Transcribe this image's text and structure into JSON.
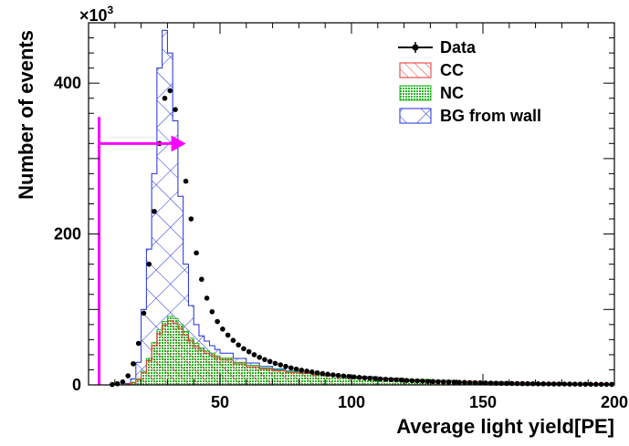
{
  "chart_data": {
    "type": "histogram",
    "xlabel": "Average light yield[PE]",
    "ylabel": "Number of events",
    "y_multiplier": "×10",
    "y_multiplier_exp": "3",
    "xlim": [
      0,
      200
    ],
    "ylim": [
      0,
      480
    ],
    "x_ticks": [
      50,
      100,
      150,
      200
    ],
    "y_ticks": [
      0,
      200,
      400
    ],
    "y_tick_labels": [
      "0",
      "200",
      "400"
    ],
    "legend_placement": "top-right",
    "grid": false,
    "series": [
      {
        "name": "Data",
        "style": "points",
        "color": "#000000",
        "x": [
          5,
          7,
          9,
          11,
          13,
          15,
          17,
          19,
          21,
          23,
          25,
          27,
          29,
          31,
          33,
          35,
          37,
          39,
          41,
          43,
          45,
          47,
          49,
          51,
          53,
          55,
          57,
          59,
          61,
          63,
          65,
          67,
          69,
          71,
          73,
          75,
          77,
          79,
          81,
          83,
          85,
          87,
          89,
          91,
          93,
          95,
          97,
          99,
          101,
          103,
          105,
          107,
          109,
          111,
          113,
          115,
          117,
          119,
          121,
          123,
          125,
          127,
          129,
          131,
          133,
          135,
          137,
          139,
          141,
          143,
          145,
          147,
          149,
          151,
          153,
          155,
          157,
          159,
          161,
          163,
          165,
          167,
          169,
          171,
          173,
          175,
          177,
          179,
          181,
          183,
          185,
          187,
          189,
          191,
          193,
          195,
          197,
          199
        ],
        "y": [
          0,
          0,
          0.5,
          1.5,
          4,
          12,
          28,
          55,
          95,
          160,
          230,
          320,
          380,
          390,
          365,
          320,
          270,
          220,
          175,
          140,
          115,
          97,
          84,
          74,
          66,
          59,
          53,
          48,
          44,
          40,
          36.5,
          33.5,
          31,
          28.5,
          26.5,
          24.5,
          22.5,
          21,
          19.5,
          18.3,
          17.1,
          16,
          15,
          14.1,
          13.3,
          12.5,
          11.8,
          11.1,
          10.5,
          9.9,
          9.3,
          8.8,
          8.3,
          7.8,
          7.4,
          7,
          6.6,
          6.2,
          5.9,
          5.6,
          5.3,
          5,
          4.7,
          4.4,
          4.2,
          4,
          3.8,
          3.6,
          3.4,
          3.2,
          3,
          2.8,
          2.65,
          2.5,
          2.35,
          2.2,
          2.1,
          2,
          1.9,
          1.8,
          1.7,
          1.6,
          1.5,
          1.45,
          1.4,
          1.3,
          1.25,
          1.2,
          1.15,
          1.1,
          1,
          0.95,
          0.9,
          0.85,
          0.8,
          0.75,
          0.7,
          0.65
        ]
      },
      {
        "name": "CC",
        "style": "hatched-step",
        "color": "#e8322e",
        "x": [
          10,
          12,
          14,
          16,
          18,
          20,
          22,
          24,
          26,
          28,
          30,
          32,
          34,
          36,
          38,
          40,
          42,
          44,
          46,
          48,
          50,
          55,
          60,
          65,
          70,
          75,
          80,
          85,
          90,
          95,
          100,
          110,
          120,
          130,
          140,
          150,
          160,
          170,
          180,
          190,
          200
        ],
        "y": [
          0,
          0,
          1,
          3,
          7,
          16,
          32,
          52,
          68,
          79,
          85,
          82,
          75,
          66,
          58,
          51,
          46,
          42,
          39,
          36,
          33,
          28,
          24,
          21,
          18.5,
          16.5,
          15,
          13.5,
          12.2,
          11,
          10,
          8.2,
          6.7,
          5.5,
          4.5,
          3.7,
          3,
          2.4,
          2,
          1.6,
          1.3
        ]
      },
      {
        "name": "NC",
        "style": "hatched-step",
        "color": "#27b427",
        "x": [
          10,
          12,
          14,
          16,
          18,
          20,
          22,
          24,
          26,
          28,
          30,
          32,
          34,
          36,
          38,
          40,
          42,
          44,
          46,
          48,
          50,
          55,
          60,
          65,
          70,
          75,
          80,
          85,
          90,
          95,
          100,
          110,
          120,
          130,
          140,
          150,
          160,
          170,
          180,
          190,
          200
        ],
        "y": [
          0,
          0,
          1,
          3.5,
          8,
          18,
          35,
          56,
          73,
          84,
          91,
          88,
          80,
          71,
          62,
          55,
          49,
          45,
          42,
          38.5,
          35.5,
          30,
          26,
          22.5,
          20,
          17.8,
          16,
          14.5,
          13,
          11.8,
          10.7,
          8.8,
          7.2,
          5.9,
          4.8,
          4,
          3.2,
          2.6,
          2.1,
          1.7,
          1.4
        ]
      },
      {
        "name": "BG from wall",
        "style": "hatched-step",
        "color": "#1f2fd8",
        "x": [
          10,
          12,
          14,
          16,
          18,
          20,
          22,
          24,
          26,
          28,
          30,
          32,
          34,
          36,
          38,
          40,
          42,
          44,
          46,
          48,
          50,
          55,
          60,
          65,
          70,
          75,
          80,
          85,
          90,
          95,
          100,
          110,
          120,
          130,
          140,
          150,
          160,
          170,
          180,
          190,
          200
        ],
        "y": [
          0,
          0,
          2,
          8,
          30,
          100,
          180,
          280,
          420,
          470,
          440,
          350,
          250,
          160,
          105,
          80,
          65,
          58,
          52,
          47,
          42,
          35,
          29,
          24.5,
          21,
          18.5,
          16.5,
          14.8,
          13.3,
          12,
          11,
          9,
          7.3,
          6,
          4.9,
          4.1,
          3.4,
          2.8,
          2.3,
          1.9,
          1.5
        ]
      }
    ],
    "annotation": {
      "type": "arrow",
      "color": "#ff00ff",
      "vertical_line_x": 4,
      "vertical_line_top": 355,
      "arrow_y": 320,
      "arrow_x_start": 4,
      "arrow_x_end": 37
    }
  }
}
